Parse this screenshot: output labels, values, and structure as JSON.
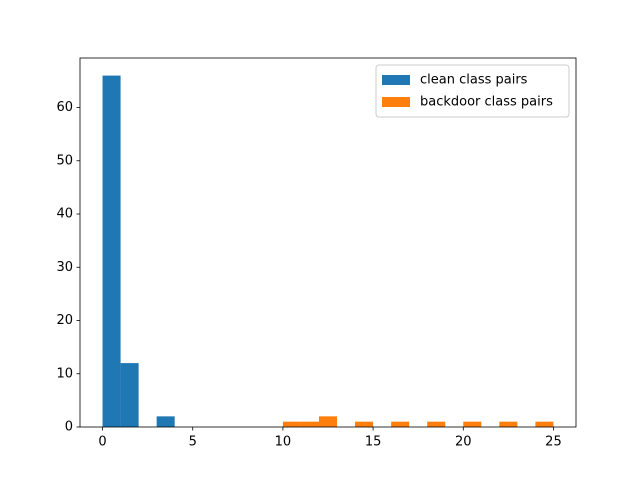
{
  "chart_data": {
    "type": "histogram",
    "series": [
      {
        "name": "clean class pairs",
        "color": "#1f77b4",
        "bins": [
          0,
          1,
          2,
          3,
          4
        ],
        "values": [
          66,
          12,
          0,
          2
        ]
      },
      {
        "name": "backdoor class pairs",
        "color": "#ff7f0e",
        "bins": [
          10,
          11,
          12,
          13,
          14,
          15,
          16,
          17,
          18,
          19,
          20,
          21,
          22,
          23,
          24,
          25
        ],
        "values": [
          1,
          1,
          2,
          0,
          1,
          0,
          1,
          0,
          1,
          0,
          1,
          0,
          1,
          0,
          1
        ]
      }
    ],
    "xlim": [
      -1.25,
      26.25
    ],
    "xticks": [
      0,
      5,
      10,
      15,
      20,
      25
    ],
    "ylim": [
      0,
      69.3
    ],
    "yticks": [
      0,
      10,
      20,
      30,
      40,
      50,
      60
    ],
    "legend": "upper right",
    "grid": false
  }
}
